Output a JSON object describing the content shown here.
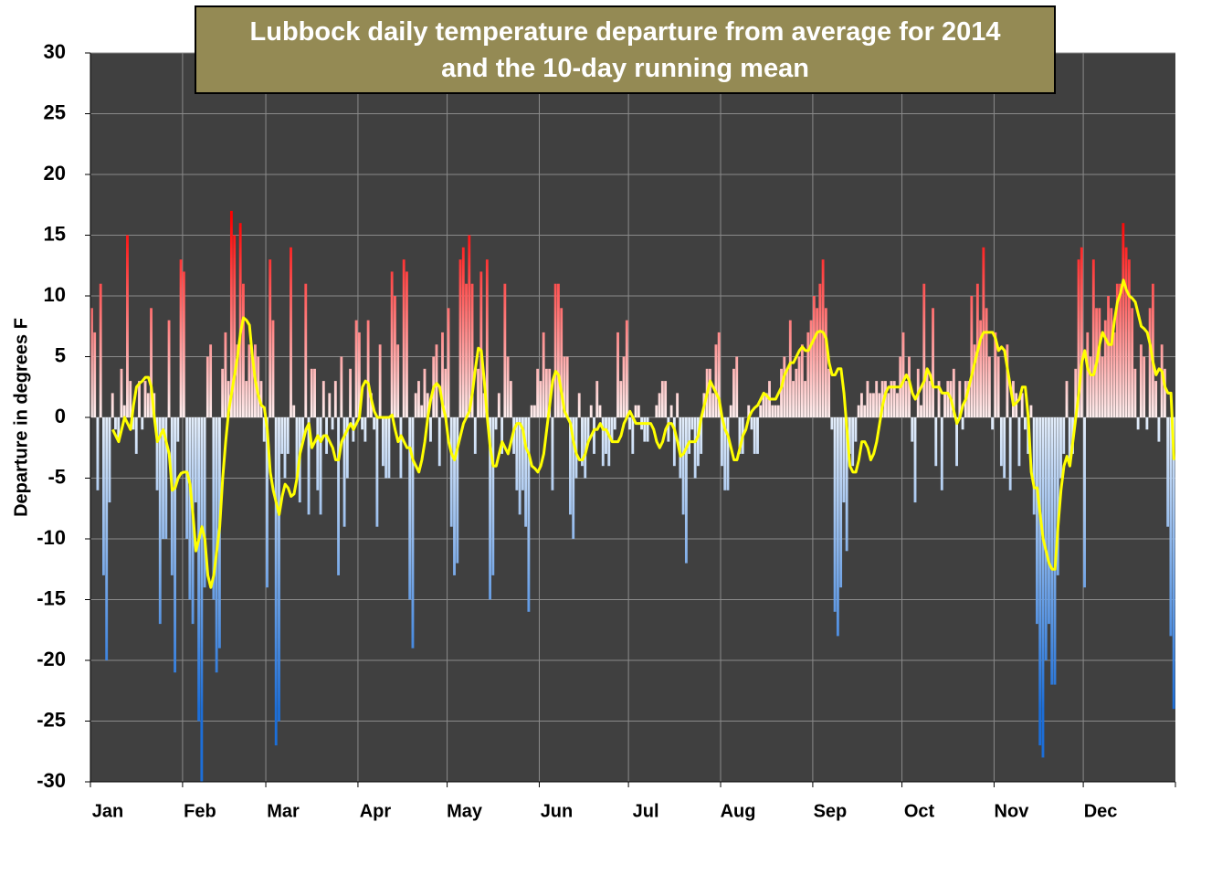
{
  "chart_data": {
    "type": "bar_line",
    "title": [
      "Lubbock daily temperature departure from average for 2014",
      "and the 10-day running mean"
    ],
    "y_label": "Departure in degrees F",
    "ylim": [
      -30,
      30
    ],
    "yticks": [
      -30,
      -25,
      -20,
      -15,
      -10,
      -5,
      0,
      5,
      10,
      15,
      20,
      25,
      30
    ],
    "xlim": [
      0.5,
      365.5
    ],
    "xticks": [
      {
        "value": 0.5,
        "label": "Jan"
      },
      {
        "value": 31.5,
        "label": "Feb"
      },
      {
        "value": 59.5,
        "label": "Mar"
      },
      {
        "value": 90.5,
        "label": "Apr"
      },
      {
        "value": 120.5,
        "label": "May"
      },
      {
        "value": 151.5,
        "label": "Jun"
      },
      {
        "value": 181.5,
        "label": "Jul"
      },
      {
        "value": 212.5,
        "label": "Aug"
      },
      {
        "value": 243.5,
        "label": "Sep"
      },
      {
        "value": 273.5,
        "label": "Oct"
      },
      {
        "value": 304.5,
        "label": "Nov"
      },
      {
        "value": 334.5,
        "label": "Dec"
      }
    ],
    "grid": true,
    "plot_background": "#404040",
    "positive_color": "#ff0000",
    "negative_color": "#1c6ed8",
    "line_color": "#ffff00",
    "x": [
      1,
      2,
      3,
      4,
      5,
      6,
      7,
      8,
      9,
      10,
      11,
      12,
      13,
      14,
      15,
      16,
      17,
      18,
      19,
      20,
      21,
      22,
      23,
      24,
      25,
      26,
      27,
      28,
      29,
      30,
      31,
      32,
      33,
      34,
      35,
      36,
      37,
      38,
      39,
      40,
      41,
      42,
      43,
      44,
      45,
      46,
      47,
      48,
      49,
      50,
      51,
      52,
      53,
      54,
      55,
      56,
      57,
      58,
      59,
      60,
      61,
      62,
      63,
      64,
      65,
      66,
      67,
      68,
      69,
      70,
      71,
      72,
      73,
      74,
      75,
      76,
      77,
      78,
      79,
      80,
      81,
      82,
      83,
      84,
      85,
      86,
      87,
      88,
      89,
      90,
      91,
      92,
      93,
      94,
      95,
      96,
      97,
      98,
      99,
      100,
      101,
      102,
      103,
      104,
      105,
      106,
      107,
      108,
      109,
      110,
      111,
      112,
      113,
      114,
      115,
      116,
      117,
      118,
      119,
      120,
      121,
      122,
      123,
      124,
      125,
      126,
      127,
      128,
      129,
      130,
      131,
      132,
      133,
      134,
      135,
      136,
      137,
      138,
      139,
      140,
      141,
      142,
      143,
      144,
      145,
      146,
      147,
      148,
      149,
      150,
      151,
      152,
      153,
      154,
      155,
      156,
      157,
      158,
      159,
      160,
      161,
      162,
      163,
      164,
      165,
      166,
      167,
      168,
      169,
      170,
      171,
      172,
      173,
      174,
      175,
      176,
      177,
      178,
      179,
      180,
      181,
      182,
      183,
      184,
      185,
      186,
      187,
      188,
      189,
      190,
      191,
      192,
      193,
      194,
      195,
      196,
      197,
      198,
      199,
      200,
      201,
      202,
      203,
      204,
      205,
      206,
      207,
      208,
      209,
      210,
      211,
      212,
      213,
      214,
      215,
      216,
      217,
      218,
      219,
      220,
      221,
      222,
      223,
      224,
      225,
      226,
      227,
      228,
      229,
      230,
      231,
      232,
      233,
      234,
      235,
      236,
      237,
      238,
      239,
      240,
      241,
      242,
      243,
      244,
      245,
      246,
      247,
      248,
      249,
      250,
      251,
      252,
      253,
      254,
      255,
      256,
      257,
      258,
      259,
      260,
      261,
      262,
      263,
      264,
      265,
      266,
      267,
      268,
      269,
      270,
      271,
      272,
      273,
      274,
      275,
      276,
      277,
      278,
      279,
      280,
      281,
      282,
      283,
      284,
      285,
      286,
      287,
      288,
      289,
      290,
      291,
      292,
      293,
      294,
      295,
      296,
      297,
      298,
      299,
      300,
      301,
      302,
      303,
      304,
      305,
      306,
      307,
      308,
      309,
      310,
      311,
      312,
      313,
      314,
      315,
      316,
      317,
      318,
      319,
      320,
      321,
      322,
      323,
      324,
      325,
      326,
      327,
      328,
      329,
      330,
      331,
      332,
      333,
      334,
      335,
      336,
      337,
      338,
      339,
      340,
      341,
      342,
      343,
      344,
      345,
      346,
      347,
      348,
      349,
      350,
      351,
      352,
      353,
      354,
      355,
      356,
      357,
      358,
      359,
      360,
      361,
      362,
      363,
      364,
      365
    ],
    "values": [
      9,
      7,
      -6,
      11,
      -13,
      -20,
      -7,
      2,
      -1,
      -2,
      4,
      1,
      15,
      3,
      -1,
      -3,
      3,
      -1,
      3,
      2,
      9,
      2,
      -6,
      -17,
      -10,
      -10,
      8,
      -13,
      -21,
      -2,
      13,
      12,
      -10,
      -15,
      -17,
      -7,
      -25,
      -30,
      -14,
      5,
      6,
      -15,
      -21,
      -19,
      4,
      7,
      3,
      17,
      15,
      6,
      16,
      11,
      3,
      6,
      5,
      6,
      5,
      3,
      -2,
      -14,
      13,
      8,
      -27,
      -25,
      -3,
      -5,
      -3,
      14,
      1,
      -5,
      -7,
      -2,
      11,
      -8,
      4,
      4,
      -6,
      -8,
      3,
      -3,
      2,
      -1,
      3,
      -13,
      5,
      -9,
      -5,
      4,
      -2,
      8,
      7,
      -1,
      -2,
      8,
      2,
      -1,
      -9,
      6,
      -4,
      -5,
      -5,
      12,
      10,
      6,
      -5,
      13,
      12,
      -15,
      -19,
      2,
      3,
      1,
      4,
      2,
      -2,
      5,
      6,
      -4,
      7,
      4,
      9,
      -9,
      -13,
      -12,
      13,
      14,
      11,
      15,
      11,
      -3,
      4,
      12,
      2,
      13,
      -15,
      -13,
      -1,
      2,
      -3,
      11,
      5,
      3,
      -3,
      -6,
      -8,
      -6,
      -9,
      -16,
      1,
      1,
      4,
      3,
      7,
      4,
      4,
      -6,
      11,
      11,
      9,
      5,
      5,
      -8,
      -10,
      -5,
      2,
      -4,
      -5,
      -2,
      1,
      -3,
      3,
      1,
      -4,
      -3,
      -4,
      -2,
      -1,
      7,
      3,
      5,
      8,
      -1,
      -3,
      1,
      1,
      -1,
      -2,
      -2,
      0,
      0,
      1,
      2,
      3,
      3,
      -2,
      1,
      -4,
      2,
      -5,
      -8,
      -12,
      -3,
      -1,
      -5,
      -4,
      -3,
      2,
      4,
      4,
      2,
      6,
      7,
      -4,
      -6,
      -6,
      1,
      4,
      5,
      -3,
      -3,
      0,
      1,
      -1,
      -3,
      -3,
      1,
      2,
      2,
      3,
      1,
      1,
      1,
      4,
      5,
      4,
      8,
      3,
      4,
      5,
      6,
      3,
      7,
      8,
      10,
      9,
      11,
      13,
      9,
      4,
      -1,
      -16,
      -18,
      -14,
      -7,
      -11,
      -3,
      -4,
      -2,
      1,
      2,
      1,
      3,
      2,
      2,
      3,
      2,
      3,
      3,
      2,
      3,
      3,
      2,
      5,
      7,
      3,
      5,
      -2,
      -7,
      4,
      1,
      11,
      4,
      3,
      9,
      -4,
      3,
      -6,
      2,
      3,
      3,
      4,
      -4,
      3,
      -1,
      3,
      3,
      10,
      6,
      11,
      8,
      14,
      9,
      5,
      -1,
      7,
      5,
      -4,
      -5,
      6,
      -6,
      3,
      2,
      -4,
      2,
      -1,
      -3,
      1,
      -8,
      -17,
      -27,
      -28,
      -20,
      -17,
      -22,
      -22,
      -13,
      -5,
      -3,
      3,
      -4,
      -3,
      4,
      13,
      14,
      -14,
      7,
      5,
      13,
      9,
      9,
      5,
      8,
      10,
      9,
      7,
      11,
      11,
      16,
      14,
      13,
      9,
      4,
      -1,
      6,
      5,
      -1,
      9,
      11,
      3,
      -2,
      6,
      4,
      -9,
      -18,
      -24
    ],
    "line_values": [
      null,
      null,
      null,
      null,
      null,
      null,
      null,
      -1,
      -1.5,
      -2,
      -1,
      0,
      -0.5,
      -1,
      1,
      2.5,
      2.8,
      3,
      3.3,
      3.3,
      2.5,
      0,
      -2,
      -1.5,
      -1,
      -2,
      -3,
      -6,
      -5.8,
      -5,
      -4.6,
      -4.5,
      -4.5,
      -5.5,
      -8,
      -11,
      -10,
      -9,
      -10,
      -13,
      -14,
      -13,
      -11,
      -9,
      -5,
      -2,
      0.5,
      2,
      3.5,
      5,
      7,
      8.2,
      8,
      7.6,
      5,
      3,
      1.8,
      1,
      0.8,
      -1,
      -4.5,
      -6,
      -7,
      -8,
      -6.5,
      -5.5,
      -5.8,
      -6.5,
      -6.3,
      -5,
      -3,
      -2,
      -1,
      -0.5,
      -2.5,
      -2,
      -1.5,
      -2,
      -1.5,
      -1.5,
      -2,
      -2.5,
      -3.5,
      -3.5,
      -2,
      -1.5,
      -1,
      -0.5,
      -1,
      -0.5,
      0,
      2.5,
      3,
      2.8,
      1.5,
      0.5,
      0,
      0,
      0,
      0,
      0,
      0.2,
      -1,
      -2,
      -1.5,
      -2,
      -2.5,
      -2.5,
      -3.5,
      -4,
      -4.5,
      -3.5,
      -2,
      0,
      1.5,
      2.5,
      2.8,
      2.5,
      1,
      0,
      -2,
      -3,
      -3.5,
      -2.5,
      -1.5,
      -0.5,
      0,
      0.5,
      2,
      4,
      5.7,
      5.5,
      3,
      0,
      -2.5,
      -4,
      -4,
      -3,
      -2,
      -2.5,
      -3,
      -2,
      -1,
      -0.5,
      -0.5,
      -1,
      -2.5,
      -3,
      -4,
      -4.2,
      -4.5,
      -4,
      -3,
      -1,
      1,
      3,
      3.8,
      3.5,
      2,
      0.5,
      0,
      -0.5,
      -2,
      -3,
      -3.5,
      -3.5,
      -3,
      -2,
      -1.5,
      -1,
      -1,
      -0.5,
      -1,
      -1,
      -1.5,
      -2,
      -2,
      -2,
      -1.5,
      -0.5,
      0,
      0.5,
      0,
      -0.5,
      -0.5,
      -0.5,
      -0.5,
      -0.5,
      -0.5,
      -1,
      -2,
      -2.5,
      -2,
      -1,
      -0.5,
      -0.5,
      -1,
      -2,
      -3.2,
      -3,
      -2.5,
      -2,
      -2,
      -2,
      -1.5,
      0,
      1,
      2,
      3,
      2.5,
      2,
      1.5,
      0,
      -1,
      -1.5,
      -2.5,
      -3.5,
      -3.5,
      -2.5,
      -1.5,
      -1,
      0,
      0.5,
      0.8,
      1,
      1.5,
      2,
      1.8,
      1.5,
      1.5,
      1.5,
      2,
      2.5,
      3.5,
      4,
      4.5,
      4.5,
      5,
      5.5,
      5.8,
      5.5,
      5.5,
      6,
      6.5,
      7,
      7.1,
      7,
      6.5,
      4.5,
      3.5,
      3.5,
      4,
      4,
      2,
      -1,
      -4,
      -4.5,
      -4.5,
      -3.5,
      -2,
      -2,
      -2.5,
      -3.5,
      -3,
      -2,
      -0.5,
      1,
      2,
      2.5,
      2.5,
      2.5,
      2.5,
      2.5,
      3,
      3.5,
      3,
      2,
      1.5,
      2,
      2.5,
      3,
      4,
      3.5,
      2.5,
      2.5,
      2.5,
      2,
      2,
      2,
      1.5,
      0.5,
      -0.5,
      0,
      1,
      1.5,
      2.5,
      3.5,
      4.5,
      5.5,
      6.5,
      7,
      7,
      7,
      7,
      6.5,
      5.5,
      5.8,
      5.5,
      4,
      2.5,
      1,
      1.2,
      1.5,
      2.5,
      2.5,
      0,
      -4.5,
      -5.8,
      -5.8,
      -8,
      -10,
      -11,
      -12,
      -12.5,
      -12.5,
      -9,
      -6,
      -4,
      -3.2,
      -4,
      -2,
      0,
      2,
      4.5,
      5.5,
      4,
      3.5,
      3.5,
      4.5,
      6,
      7,
      6.5,
      6,
      6,
      8,
      9.5,
      10.2,
      11.3,
      10.5,
      10,
      9.8,
      9.5,
      8.5,
      7.5,
      7.3,
      7,
      6,
      4.5,
      3.5,
      4,
      3.8,
      2.5,
      2,
      2,
      -3.5
    ]
  }
}
